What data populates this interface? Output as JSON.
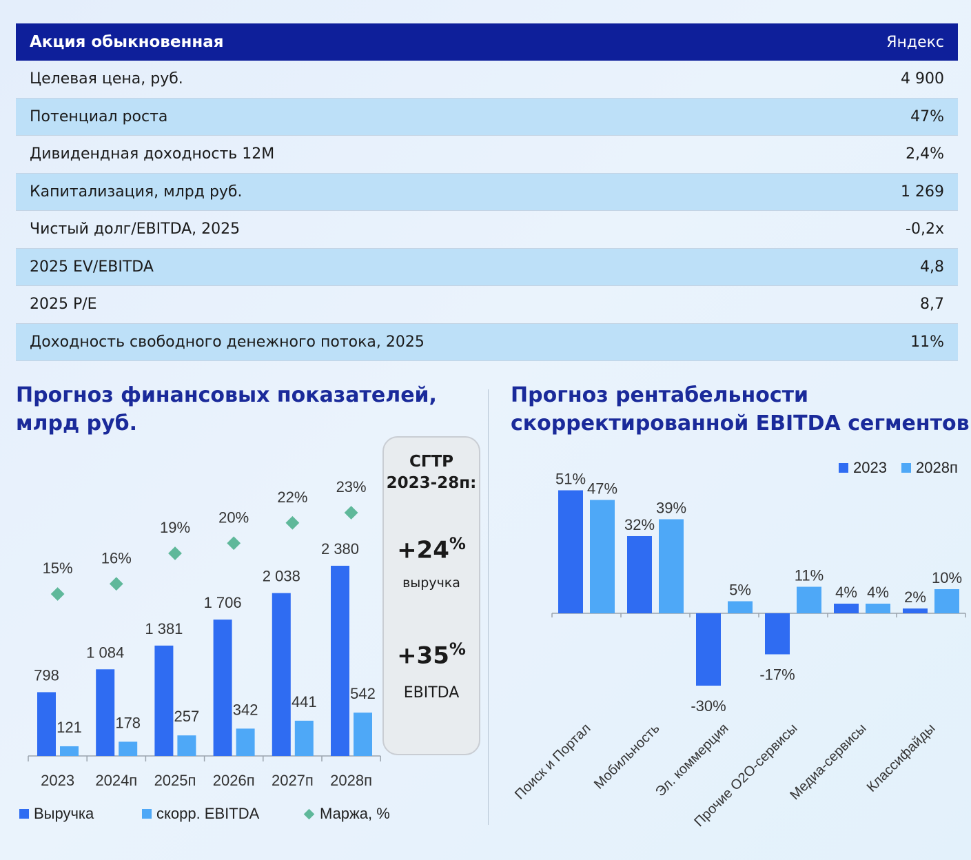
{
  "table": {
    "header": {
      "left": "Акция обыкновенная",
      "right": "Яндекс"
    },
    "rows": [
      {
        "label": "Целевая цена, руб.",
        "value": "4 900"
      },
      {
        "label": "Потенциал роста",
        "value": "47%"
      },
      {
        "label": "Дивидендная доходность 12М",
        "value": "2,4%"
      },
      {
        "label": "Капитализация, млрд руб.",
        "value": "1 269"
      },
      {
        "label": "Чистый долг/EBITDA, 2025",
        "value": "-0,2x"
      },
      {
        "label": "2025 EV/EBITDA",
        "value": "4,8"
      },
      {
        "label": "2025 P/E",
        "value": "8,7"
      },
      {
        "label": "Доходность свободного денежного потока, 2025",
        "value": "11%"
      }
    ]
  },
  "left_title": {
    "line1": "Прогноз финансовых показателей,",
    "line2": "млрд руб."
  },
  "right_title": {
    "line1": "Прогноз рентабельности",
    "line2": "скорректированной EBITDA сегментов"
  },
  "cagr": {
    "title_line1": "CГТР",
    "title_line2": "2023-28п:",
    "revenue_value": "+24",
    "revenue_unit": "%",
    "revenue_label": "выручка",
    "ebitda_value": "+35",
    "ebitda_unit": "%",
    "ebitda_label": "EBITDA"
  },
  "chart_data": [
    {
      "type": "bar",
      "categories": [
        "2023",
        "2024п",
        "2025п",
        "2026п",
        "2027п",
        "2028п"
      ],
      "series": [
        {
          "name": "Выручка",
          "values": [
            798,
            1084,
            1381,
            1706,
            2038,
            2380
          ],
          "labels": [
            "798",
            "1 084",
            "1 381",
            "1 706",
            "2 038",
            "2 380"
          ],
          "color": "#2f6cf2"
        },
        {
          "name": "скорр. EBITDA",
          "values": [
            121,
            178,
            257,
            342,
            441,
            542
          ],
          "labels": [
            "121",
            "178",
            "257",
            "342",
            "441",
            "542"
          ],
          "color": "#4ea8f7"
        },
        {
          "name": "Маржа, %",
          "kind": "scatter",
          "values": [
            15,
            16,
            19,
            20,
            22,
            23
          ],
          "labels": [
            "15%",
            "16%",
            "19%",
            "20%",
            "22%",
            "23%"
          ],
          "color": "#5fb89a"
        }
      ]
    },
    {
      "type": "bar",
      "categories": [
        "Поиск и Портал",
        "Мобильность",
        "Эл. коммерция",
        "Прочие О2О-сервисы",
        "Медиа-сервисы",
        "Классифайды"
      ],
      "series": [
        {
          "name": "2023",
          "values": [
            51,
            32,
            -30,
            -17,
            4,
            2
          ],
          "labels": [
            "51%",
            "32%",
            "-30%",
            "-17%",
            "4%",
            "2%"
          ],
          "color": "#2f6cf2"
        },
        {
          "name": "2028п",
          "values": [
            47,
            39,
            5,
            11,
            4,
            10
          ],
          "labels": [
            "47%",
            "39%",
            "5%",
            "11%",
            "4%",
            "10%"
          ],
          "color": "#4ea8f7"
        }
      ],
      "ylabel": ""
    }
  ]
}
